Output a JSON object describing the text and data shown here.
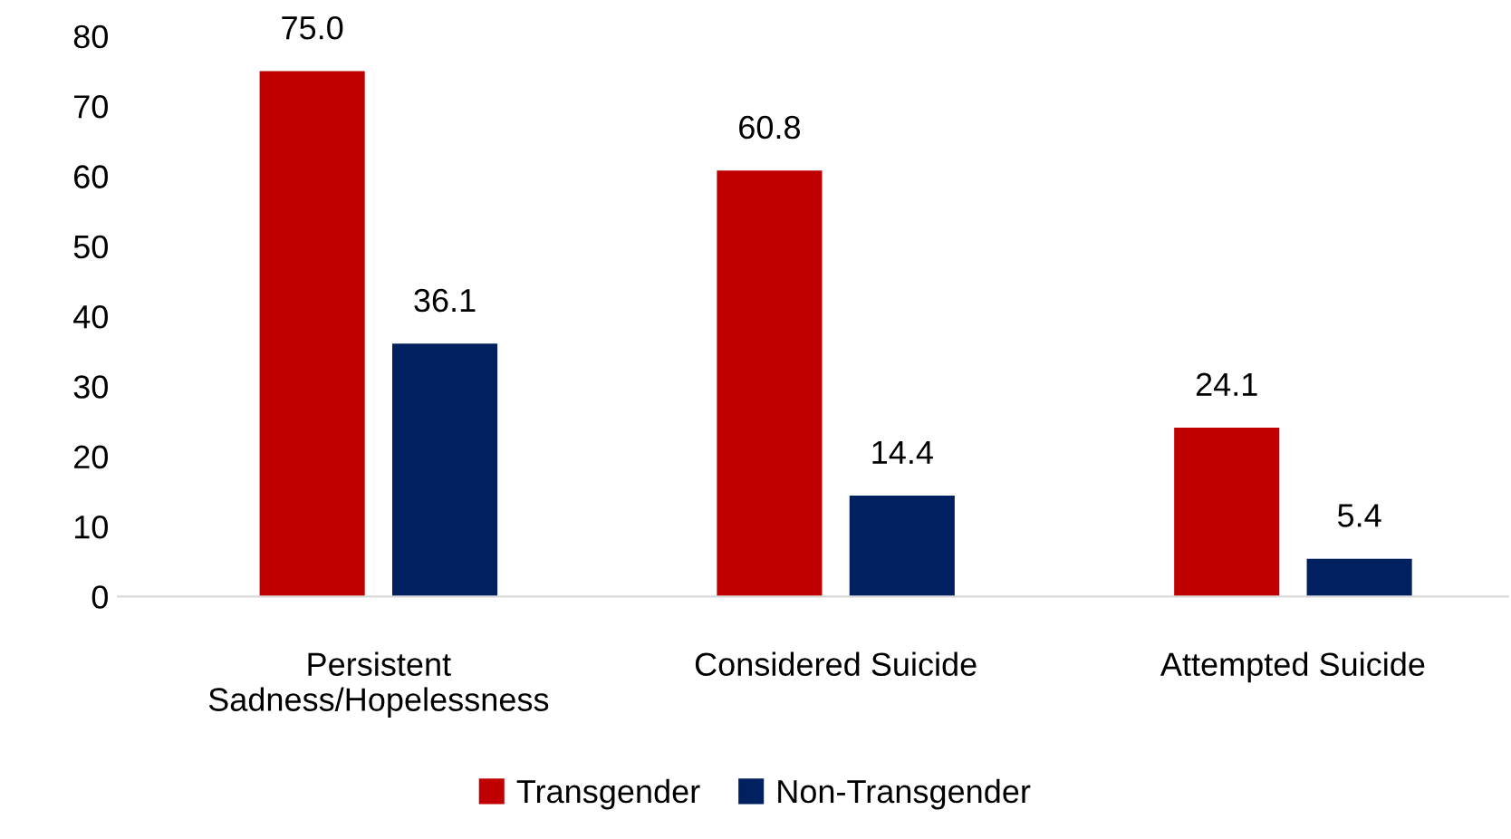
{
  "chart_data": {
    "type": "bar",
    "categories": [
      "Persistent\nSadness/Hopelessness",
      "Considered Suicide",
      "Attempted Suicide"
    ],
    "series": [
      {
        "name": "Transgender",
        "color": "#c00000",
        "values": [
          75.0,
          60.8,
          24.1
        ],
        "value_labels": [
          "75.0",
          "60.8",
          "24.1"
        ]
      },
      {
        "name": "Non-Transgender",
        "color": "#002060",
        "values": [
          36.1,
          14.4,
          5.4
        ],
        "value_labels": [
          "36.1",
          "14.4",
          "5.4"
        ]
      }
    ],
    "ylim": [
      0,
      80
    ],
    "yticks": [
      0,
      10,
      20,
      30,
      40,
      50,
      60,
      70,
      80
    ],
    "grid": false,
    "legend": "bottom"
  }
}
